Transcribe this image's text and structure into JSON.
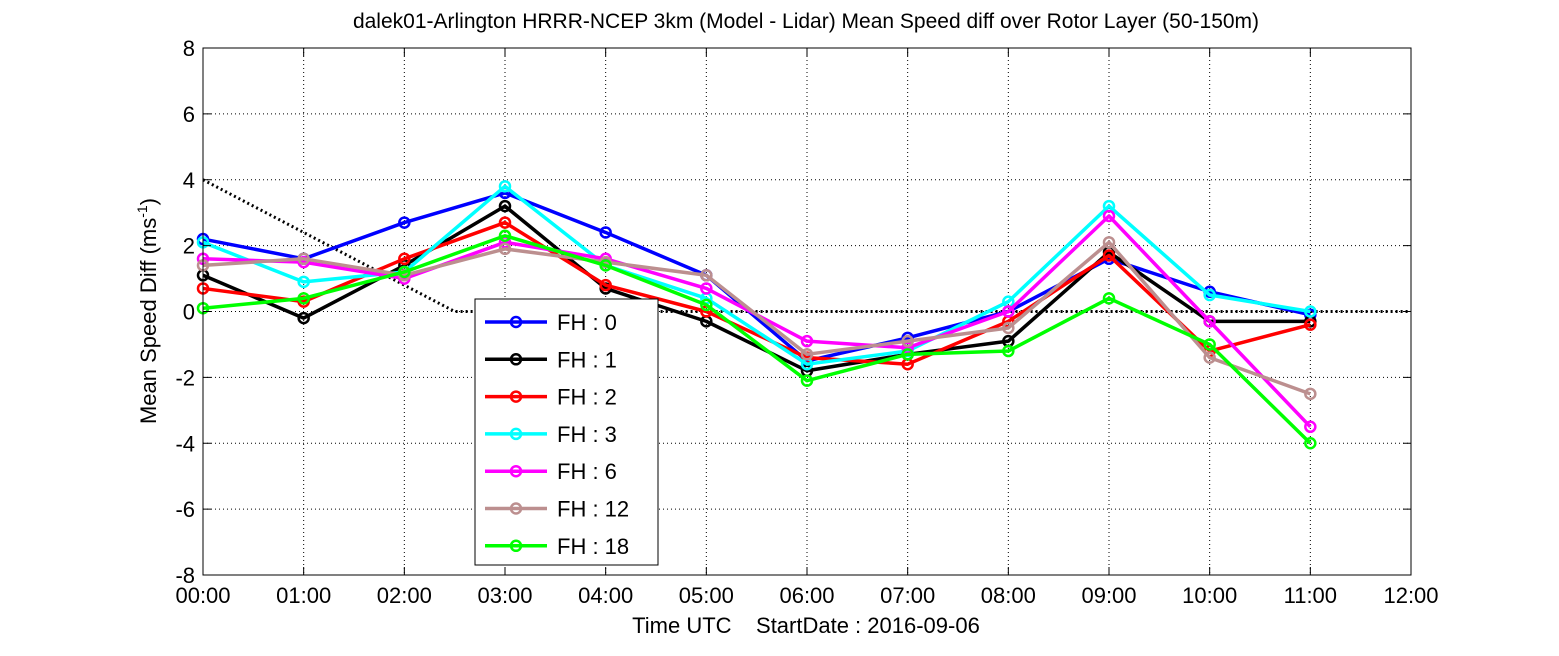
{
  "chart_data": {
    "type": "line",
    "title": "dalek01-Arlington HRRR-NCEP 3km (Model - Lidar) Mean Speed diff over Rotor Layer (50-150m)",
    "xlabel": "Time UTC    StartDate : 2016-09-06",
    "ylabel_main": "Mean Speed Diff (ms",
    "ylabel_sup": "-1",
    "ylabel_close": ")",
    "x_ticks": [
      "00:00",
      "01:00",
      "02:00",
      "03:00",
      "04:00",
      "05:00",
      "06:00",
      "07:00",
      "08:00",
      "09:00",
      "10:00",
      "11:00",
      "12:00"
    ],
    "y_ticks": [
      "-8",
      "-6",
      "-4",
      "-2",
      "0",
      "2",
      "4",
      "6",
      "8"
    ],
    "xlim": [
      0,
      12
    ],
    "ylim": [
      -8,
      8
    ],
    "grid": true,
    "legend_position": "lower-center-left",
    "x": [
      0,
      1,
      2,
      3,
      4,
      5,
      6,
      7,
      8,
      9,
      10,
      11
    ],
    "series": [
      {
        "name": "FH : 0",
        "color": "#0000ff",
        "values": [
          2.2,
          1.6,
          2.7,
          3.6,
          2.4,
          1.1,
          -1.5,
          -0.8,
          0.0,
          1.6,
          0.6,
          -0.1
        ]
      },
      {
        "name": "FH : 1",
        "color": "#000000",
        "values": [
          1.1,
          -0.2,
          1.4,
          3.2,
          0.7,
          -0.3,
          -1.8,
          -1.3,
          -0.9,
          1.8,
          -0.3,
          -0.3
        ]
      },
      {
        "name": "FH : 2",
        "color": "#ff0000",
        "values": [
          0.7,
          0.3,
          1.6,
          2.7,
          0.8,
          0.0,
          -1.4,
          -1.6,
          -0.3,
          1.7,
          -1.2,
          -0.4
        ]
      },
      {
        "name": "FH : 3",
        "color": "#00ffff",
        "values": [
          2.1,
          0.9,
          1.2,
          3.8,
          1.4,
          0.4,
          -1.6,
          -1.2,
          0.3,
          3.2,
          0.5,
          0.0
        ]
      },
      {
        "name": "FH : 6",
        "color": "#ff00ff",
        "values": [
          1.6,
          1.5,
          1.0,
          2.1,
          1.6,
          0.7,
          -0.9,
          -1.1,
          0.0,
          2.9,
          -0.3,
          -3.5
        ]
      },
      {
        "name": "FH : 12",
        "color": "#bc8f8f",
        "values": [
          1.4,
          1.6,
          1.1,
          1.9,
          1.5,
          1.1,
          -1.3,
          -0.9,
          -0.5,
          2.1,
          -1.4,
          -2.5
        ]
      },
      {
        "name": "FH : 18",
        "color": "#00ff00",
        "values": [
          0.1,
          0.4,
          1.2,
          2.3,
          1.4,
          0.2,
          -2.1,
          -1.3,
          -1.2,
          0.4,
          -1.0,
          -4.0
        ]
      }
    ],
    "reference_line": {
      "style": "dotted",
      "color": "#000000",
      "x": [
        0,
        2.5,
        12
      ],
      "y": [
        4,
        0,
        0
      ]
    }
  }
}
